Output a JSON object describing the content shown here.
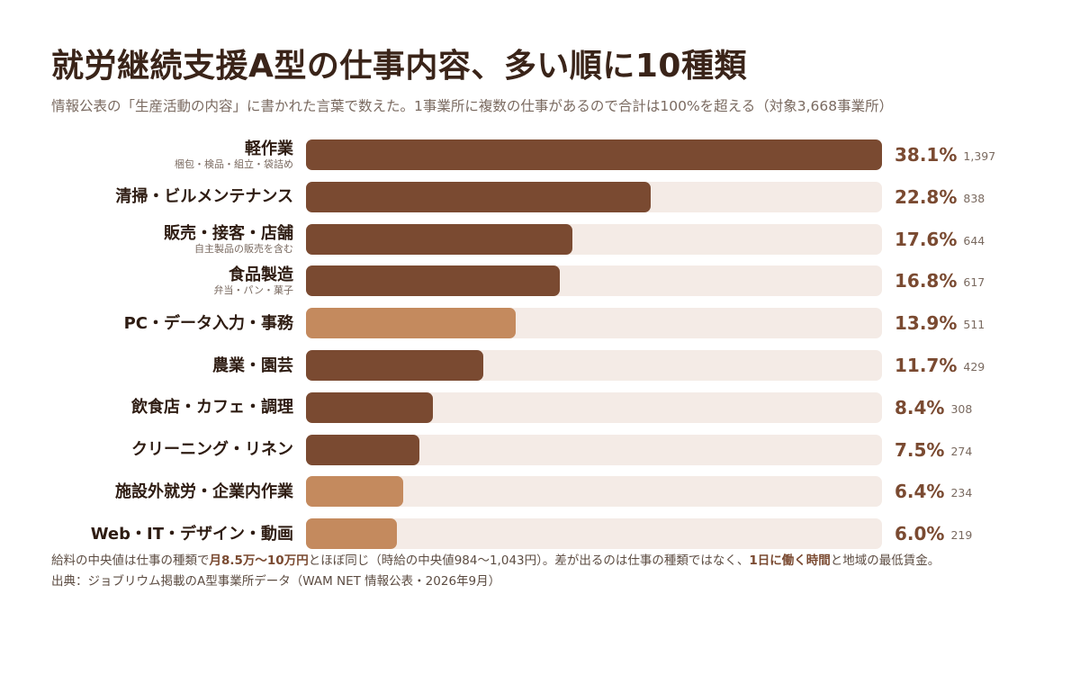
{
  "title": "就労継続支援A型の仕事内容、多い順に10種類",
  "subtitle": "情報公表の「生産活動の内容」に書かれた言葉で数えた。1事業所に複数の仕事があるので合計は100%を超える（対象3,668事業所）",
  "colors": {
    "dark": "#7a4a31",
    "light": "#c48a5e",
    "track": "#f4ebe6"
  },
  "chart_data": {
    "type": "bar",
    "orientation": "horizontal",
    "xlim": [
      0,
      100
    ],
    "categories": [
      {
        "label": "軽作業",
        "note": "梱包・検品・組立・袋詰め",
        "percent_label": "38.1%",
        "percent": 38.1,
        "count_label": "1,397",
        "count": 1397,
        "color_group": "dark"
      },
      {
        "label": "清掃・ビルメンテナンス",
        "note": "",
        "percent_label": "22.8%",
        "percent": 22.8,
        "count_label": "838",
        "count": 838,
        "color_group": "dark"
      },
      {
        "label": "販売・接客・店舗",
        "note": "自主製品の販売を含む",
        "percent_label": "17.6%",
        "percent": 17.6,
        "count_label": "644",
        "count": 644,
        "color_group": "dark"
      },
      {
        "label": "食品製造",
        "note": "弁当・パン・菓子",
        "percent_label": "16.8%",
        "percent": 16.8,
        "count_label": "617",
        "count": 617,
        "color_group": "dark"
      },
      {
        "label": "PC・データ入力・事務",
        "note": "",
        "percent_label": "13.9%",
        "percent": 13.9,
        "count_label": "511",
        "count": 511,
        "color_group": "light"
      },
      {
        "label": "農業・園芸",
        "note": "",
        "percent_label": "11.7%",
        "percent": 11.7,
        "count_label": "429",
        "count": 429,
        "color_group": "dark"
      },
      {
        "label": "飲食店・カフェ・調理",
        "note": "",
        "percent_label": "8.4%",
        "percent": 8.4,
        "count_label": "308",
        "count": 308,
        "color_group": "dark"
      },
      {
        "label": "クリーニング・リネン",
        "note": "",
        "percent_label": "7.5%",
        "percent": 7.5,
        "count_label": "274",
        "count": 274,
        "color_group": "dark"
      },
      {
        "label": "施設外就労・企業内作業",
        "note": "",
        "percent_label": "6.4%",
        "percent": 6.4,
        "count_label": "234",
        "count": 234,
        "color_group": "light"
      },
      {
        "label": "Web・IT・デザイン・動画",
        "note": "",
        "percent_label": "6.0%",
        "percent": 6.0,
        "count_label": "219",
        "count": 219,
        "color_group": "light"
      }
    ]
  },
  "footnote": {
    "part1": "給料の中央値は仕事の種類で",
    "highlight1": "月8.5万〜10万円",
    "part2": "とほぼ同じ（時給の中央値984〜1,043円）。差が出るのは仕事の種類ではなく、",
    "highlight2": "1日に働く時間",
    "part3": "と地域の最低賃金。"
  },
  "source": "出典：ジョブリウム掲載のA型事業所データ（WAM NET 情報公表・2026年9月）"
}
